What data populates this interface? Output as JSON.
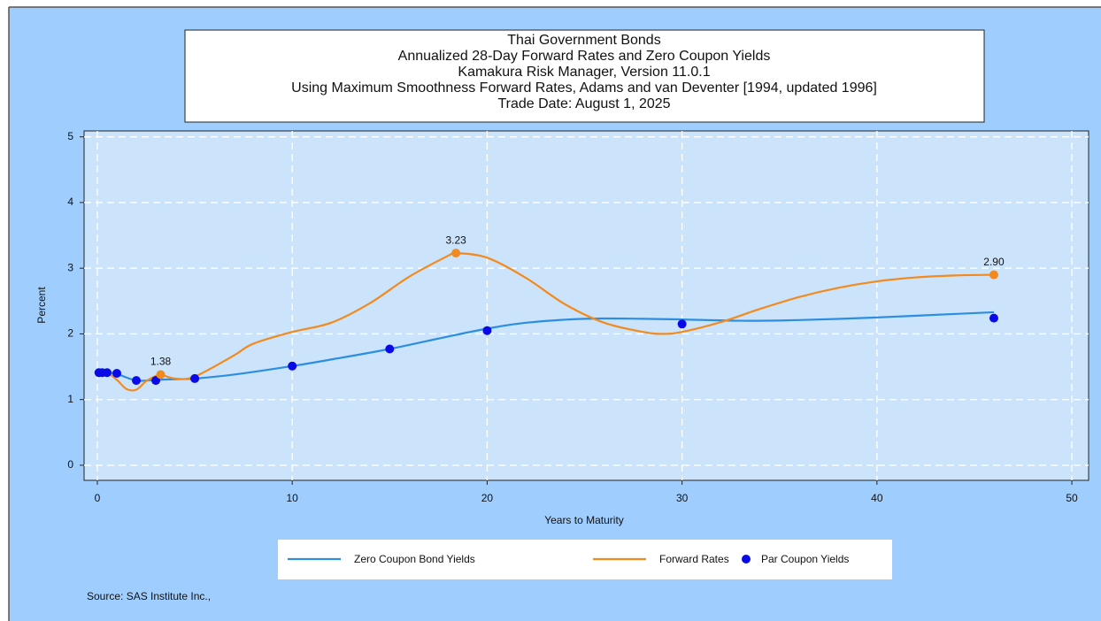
{
  "chart_data": {
    "type": "line",
    "title": [
      "Thai Government Bonds",
      "Annualized 28-Day Forward Rates and Zero Coupon Yields",
      "Kamakura Risk Manager, Version 11.0.1",
      "Using Maximum Smoothness Forward Rates, Adams and van Deventer [1994, updated 1996]",
      "Trade Date: August 1, 2025"
    ],
    "x_label": "Years to Maturity",
    "y_label": "Percent",
    "xlim": [
      -0.68,
      50.86
    ],
    "ylim": [
      -0.23,
      5.09
    ],
    "xticks": [
      0,
      10,
      20,
      30,
      40,
      50
    ],
    "yticks": [
      0,
      1,
      2,
      3,
      4,
      5
    ],
    "grid": true,
    "series": [
      {
        "name": "Zero Coupon Bond Yields",
        "color": "#2b8ee0",
        "kind": "line",
        "x": [
          0,
          0.25,
          0.5,
          1,
          2,
          3,
          4,
          5,
          7,
          10,
          12,
          15,
          18,
          20,
          22,
          25,
          28,
          30,
          33,
          36,
          40,
          43,
          46
        ],
        "values": [
          1.41,
          1.41,
          1.41,
          1.39,
          1.29,
          1.3,
          1.31,
          1.32,
          1.38,
          1.51,
          1.61,
          1.77,
          1.96,
          2.08,
          2.17,
          2.23,
          2.23,
          2.22,
          2.2,
          2.21,
          2.25,
          2.29,
          2.33
        ]
      },
      {
        "name": "Forward Rates",
        "color": "#f28a1e",
        "kind": "line",
        "x": [
          0,
          0.5,
          1,
          1.5,
          2,
          2.5,
          3,
          3.25,
          4,
          5,
          7,
          8,
          10,
          12,
          14,
          16,
          18,
          18.4,
          20,
          22,
          24,
          26,
          28,
          29,
          30,
          32,
          34,
          36,
          38,
          40,
          42,
          44,
          46
        ],
        "values": [
          1.41,
          1.41,
          1.3,
          1.16,
          1.15,
          1.28,
          1.36,
          1.38,
          1.32,
          1.35,
          1.67,
          1.85,
          2.03,
          2.17,
          2.47,
          2.87,
          3.19,
          3.23,
          3.16,
          2.85,
          2.45,
          2.17,
          2.03,
          2.0,
          2.03,
          2.18,
          2.38,
          2.56,
          2.7,
          2.8,
          2.86,
          2.89,
          2.9
        ]
      },
      {
        "name": "Par Coupon Yields",
        "color": "#0a0ae8",
        "kind": "scatter",
        "x": [
          0.08,
          0.25,
          0.5,
          1,
          2,
          3,
          5,
          10,
          15,
          20,
          30,
          46
        ],
        "values": [
          1.41,
          1.41,
          1.41,
          1.4,
          1.29,
          1.29,
          1.32,
          1.51,
          1.77,
          2.05,
          2.15,
          2.24
        ]
      }
    ],
    "annotations": [
      {
        "x": 3.25,
        "y": 1.38,
        "text": "1.38"
      },
      {
        "x": 18.4,
        "y": 3.23,
        "text": "3.23"
      },
      {
        "x": 46,
        "y": 2.9,
        "text": "2.90"
      }
    ],
    "annotation_color": "#f28a1e",
    "source": "Source: SAS Institute Inc.,"
  }
}
